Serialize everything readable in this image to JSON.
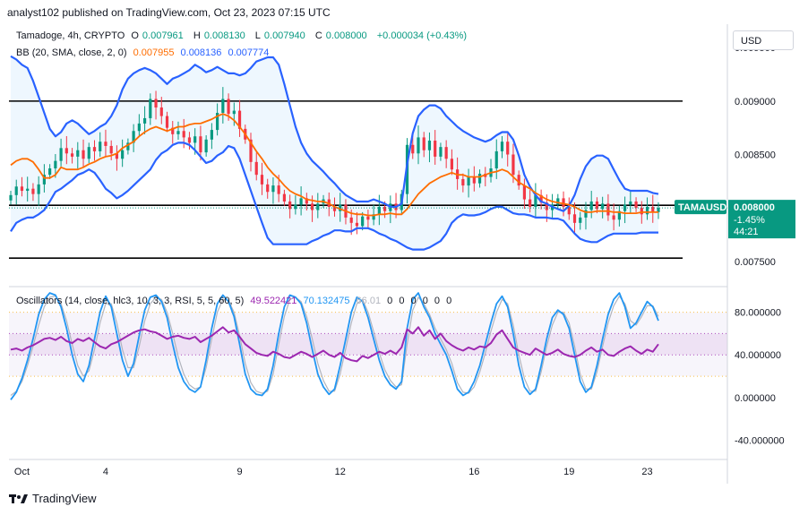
{
  "caption": "analyst102 published on TradingView.com, Oct 23, 2023 07:15 UTC",
  "legend_main": {
    "symbol": "Tamadoge, 4h, CRYPTO",
    "open_label": "O",
    "open": "0.007961",
    "high_label": "H",
    "high": "0.008130",
    "low_label": "L",
    "low": "0.007940",
    "close_label": "C",
    "close": "0.008000",
    "change": "+0.000034 (+0.43%)"
  },
  "legend_bb": {
    "label": "BB (20, SMA, close, 2, 0)",
    "basis": "0.007955",
    "upper": "0.008136",
    "lower": "0.007774"
  },
  "legend_osc": {
    "label": "Oscillators (14, close, hlc3, 10, 3, 3, RSI, 5, 5, 60, 5)",
    "v1": "49.522421",
    "v2": "70.132475",
    "v3": "66.01",
    "zeros": [
      "0",
      "0",
      "0",
      "0",
      "0",
      "0"
    ]
  },
  "currency_button": "USD",
  "price_tag": {
    "symbol": "TAMAUSD",
    "price": "0.008000",
    "pct": "-1.45%",
    "timer": "44:21"
  },
  "footer": "TradingView",
  "colors": {
    "up": "#089981",
    "down": "#f23645",
    "bb_band": "#2962ff",
    "bb_basis": "#ff6d00",
    "rsi": "#9c27b0",
    "stoch": "#2196f3"
  },
  "chart_data": [
    {
      "type": "candlestick",
      "title": "Tamadoge, 4h, CRYPTO",
      "y_ticks": [
        "0.009500",
        "0.009000",
        "0.008500",
        "0.008000",
        "0.007500"
      ],
      "x_ticks": [
        "Oct",
        "4",
        "9",
        "12",
        "16",
        "19",
        "23"
      ],
      "ylim": [
        0.00728,
        0.00972
      ],
      "horizontal_lines": [
        0.009,
        0.008025,
        0.00753
      ],
      "series": [
        {
          "name": "close",
          "values": [
            0.00812,
            0.0082,
            0.00816,
            0.00818,
            0.00813,
            0.00822,
            0.00831,
            0.00837,
            0.00844,
            0.00856,
            0.00851,
            0.00848,
            0.00854,
            0.00846,
            0.00857,
            0.00853,
            0.00862,
            0.00858,
            0.00851,
            0.00846,
            0.00854,
            0.00861,
            0.00872,
            0.00879,
            0.00884,
            0.00902,
            0.00894,
            0.00886,
            0.00875,
            0.00869,
            0.00872,
            0.00866,
            0.00861,
            0.00867,
            0.00852,
            0.00864,
            0.00873,
            0.00889,
            0.00902,
            0.00888,
            0.00891,
            0.00874,
            0.00864,
            0.00843,
            0.00831,
            0.00822,
            0.00815,
            0.00821,
            0.00813,
            0.00806,
            0.00799,
            0.00803,
            0.00809,
            0.00804,
            0.00798,
            0.00804,
            0.00808,
            0.00801,
            0.00797,
            0.00803,
            0.00791,
            0.00786,
            0.00783,
            0.00792,
            0.00789,
            0.00794,
            0.00801,
            0.00797,
            0.00804,
            0.00798,
            0.00813,
            0.00859,
            0.00851,
            0.00866,
            0.00854,
            0.00863,
            0.00848,
            0.00857,
            0.00846,
            0.00836,
            0.00827,
            0.00821,
            0.00829,
            0.00823,
            0.00832,
            0.00829,
            0.00837,
            0.00853,
            0.00862,
            0.0085,
            0.00831,
            0.00821,
            0.00808,
            0.00801,
            0.00812,
            0.00805,
            0.00798,
            0.00803,
            0.00809,
            0.00801,
            0.00794,
            0.00786,
            0.00791,
            0.00798,
            0.00806,
            0.00799,
            0.00804,
            0.00793,
            0.00789,
            0.00797,
            0.00803,
            0.00806,
            0.008,
            0.00794,
            0.00801,
            0.00796,
            0.008
          ]
        },
        {
          "name": "BB upper",
          "values": [
            0.00942,
            0.00939,
            0.00934,
            0.00931,
            0.00919,
            0.00904,
            0.00889,
            0.00874,
            0.00867,
            0.00871,
            0.00879,
            0.00882,
            0.00879,
            0.00874,
            0.00869,
            0.00872,
            0.00876,
            0.00879,
            0.00886,
            0.00896,
            0.00911,
            0.00921,
            0.00926,
            0.00929,
            0.00931,
            0.00929,
            0.00926,
            0.00921,
            0.00916,
            0.00921,
            0.00923,
            0.00926,
            0.00929,
            0.00934,
            0.00931,
            0.00927,
            0.00929,
            0.00932,
            0.00929,
            0.00926,
            0.00926,
            0.00924,
            0.00926,
            0.00931,
            0.00937,
            0.00939,
            0.00941,
            0.00941,
            0.00934,
            0.00916,
            0.00896,
            0.00876,
            0.00861,
            0.00851,
            0.00844,
            0.00839,
            0.00834,
            0.00828,
            0.00823,
            0.00817,
            0.00812,
            0.00809,
            0.00806,
            0.00806,
            0.00806,
            0.00808,
            0.00806,
            0.00804,
            0.00801,
            0.00801,
            0.00804,
            0.00841,
            0.0087,
            0.00886,
            0.00892,
            0.00896,
            0.00896,
            0.00893,
            0.00886,
            0.00881,
            0.00876,
            0.00872,
            0.00869,
            0.00866,
            0.00864,
            0.00862,
            0.00864,
            0.00868,
            0.00871,
            0.00871,
            0.00864,
            0.00849,
            0.00831,
            0.0082,
            0.00812,
            0.00806,
            0.00804,
            0.00801,
            0.00799,
            0.00797,
            0.00802,
            0.00812,
            0.00827,
            0.00839,
            0.00846,
            0.00849,
            0.00849,
            0.00846,
            0.00836,
            0.00826,
            0.00818,
            0.00816,
            0.00816,
            0.00816,
            0.00816,
            0.00814,
            0.00813
          ]
        },
        {
          "name": "BB basis",
          "values": [
            0.0084,
            0.00844,
            0.00846,
            0.00846,
            0.00843,
            0.00836,
            0.00828,
            0.00828,
            0.00831,
            0.00838,
            0.00836,
            0.00836,
            0.00836,
            0.00838,
            0.00841,
            0.00843,
            0.00846,
            0.00848,
            0.00849,
            0.00851,
            0.00856,
            0.00859,
            0.00862,
            0.00867,
            0.00871,
            0.00874,
            0.00876,
            0.00874,
            0.00872,
            0.00874,
            0.00876,
            0.00876,
            0.00878,
            0.00879,
            0.00879,
            0.00881,
            0.00883,
            0.00886,
            0.00888,
            0.00886,
            0.00882,
            0.00876,
            0.00869,
            0.00861,
            0.00853,
            0.00846,
            0.00838,
            0.00832,
            0.00827,
            0.00821,
            0.00816,
            0.00813,
            0.00811,
            0.00808,
            0.00807,
            0.00806,
            0.00806,
            0.00804,
            0.00801,
            0.00799,
            0.00797,
            0.00795,
            0.00794,
            0.00794,
            0.00793,
            0.00793,
            0.00794,
            0.00794,
            0.00795,
            0.00794,
            0.00794,
            0.00799,
            0.00806,
            0.00813,
            0.00818,
            0.00823,
            0.00826,
            0.00829,
            0.00831,
            0.00833,
            0.00831,
            0.00831,
            0.00829,
            0.00829,
            0.00829,
            0.00831,
            0.00833,
            0.00834,
            0.00836,
            0.00834,
            0.00829,
            0.00824,
            0.00821,
            0.00818,
            0.00814,
            0.00811,
            0.00808,
            0.00806,
            0.00805,
            0.00804,
            0.00803,
            0.00801,
            0.00798,
            0.00796,
            0.00796,
            0.00797,
            0.00797,
            0.00797,
            0.00796,
            0.00796,
            0.00795,
            0.00795,
            0.00795,
            0.00796,
            0.00796,
            0.00796,
            0.00796
          ]
        },
        {
          "name": "BB lower",
          "values": [
            0.00778,
            0.00786,
            0.00789,
            0.00791,
            0.00791,
            0.00794,
            0.00798,
            0.00806,
            0.00815,
            0.00818,
            0.00822,
            0.00826,
            0.00831,
            0.00833,
            0.00836,
            0.00833,
            0.00826,
            0.00818,
            0.00814,
            0.00809,
            0.00812,
            0.00816,
            0.00821,
            0.00826,
            0.00831,
            0.00836,
            0.00845,
            0.00851,
            0.00854,
            0.00859,
            0.00861,
            0.00861,
            0.00859,
            0.00854,
            0.00848,
            0.00842,
            0.00844,
            0.00849,
            0.00852,
            0.00858,
            0.00856,
            0.00846,
            0.00831,
            0.00816,
            0.00801,
            0.00786,
            0.00772,
            0.00766,
            0.00766,
            0.00766,
            0.00766,
            0.00766,
            0.00766,
            0.00766,
            0.00769,
            0.00771,
            0.00774,
            0.00776,
            0.00779,
            0.00779,
            0.00778,
            0.00778,
            0.00781,
            0.00781,
            0.00781,
            0.00779,
            0.00776,
            0.00774,
            0.00771,
            0.00769,
            0.00766,
            0.00763,
            0.00761,
            0.00761,
            0.00761,
            0.00763,
            0.00766,
            0.00769,
            0.00776,
            0.00786,
            0.00791,
            0.00794,
            0.00793,
            0.00793,
            0.00794,
            0.00796,
            0.00799,
            0.00801,
            0.00801,
            0.00798,
            0.00795,
            0.00794,
            0.00794,
            0.00793,
            0.00791,
            0.00791,
            0.00791,
            0.0079,
            0.0079,
            0.00788,
            0.00782,
            0.00776,
            0.00771,
            0.00769,
            0.00768,
            0.00768,
            0.00771,
            0.00774,
            0.00776,
            0.00776,
            0.00776,
            0.00776,
            0.00776,
            0.00777,
            0.00777,
            0.00777,
            0.00777
          ]
        }
      ]
    },
    {
      "type": "line",
      "title": "Oscillators (14, close, hlc3, 10, 3, 3, RSI, 5, 5, 60, 5)",
      "y_ticks": [
        "80.000000",
        "40.000000",
        "0.000000",
        "-40.000000"
      ],
      "ylim": [
        -58,
        104
      ],
      "bands": [
        80,
        60,
        40,
        20
      ],
      "series": [
        {
          "name": "RSI",
          "values": [
            45,
            46,
            44,
            47,
            49,
            52,
            55,
            56,
            54,
            57,
            53,
            51,
            55,
            53,
            56,
            52,
            48,
            46,
            50,
            52,
            55,
            58,
            61,
            63,
            64,
            62,
            61,
            58,
            55,
            57,
            58,
            56,
            55,
            57,
            52,
            55,
            58,
            62,
            66,
            61,
            63,
            57,
            50,
            46,
            42,
            40,
            39,
            43,
            41,
            38,
            37,
            40,
            43,
            41,
            38,
            41,
            44,
            40,
            38,
            42,
            37,
            35,
            34,
            39,
            37,
            40,
            43,
            41,
            44,
            41,
            47,
            64,
            60,
            66,
            58,
            63,
            55,
            60,
            53,
            49,
            46,
            44,
            47,
            45,
            48,
            47,
            51,
            59,
            63,
            55,
            47,
            44,
            42,
            40,
            46,
            43,
            40,
            42,
            45,
            41,
            39,
            38,
            40,
            44,
            47,
            43,
            45,
            40,
            39,
            43,
            46,
            48,
            44,
            41,
            45,
            43,
            50
          ]
        },
        {
          "name": "Stoch K",
          "values": [
            -2,
            5,
            18,
            35,
            55,
            78,
            92,
            98,
            96,
            85,
            65,
            40,
            22,
            15,
            30,
            55,
            80,
            95,
            85,
            60,
            35,
            20,
            32,
            58,
            82,
            94,
            96,
            90,
            75,
            50,
            28,
            15,
            8,
            5,
            10,
            35,
            65,
            88,
            96,
            90,
            76,
            50,
            22,
            8,
            3,
            2,
            8,
            30,
            60,
            85,
            96,
            94,
            88,
            70,
            45,
            22,
            10,
            3,
            8,
            30,
            55,
            80,
            94,
            90,
            75,
            55,
            35,
            20,
            12,
            8,
            15,
            65,
            92,
            98,
            85,
            75,
            60,
            50,
            40,
            25,
            8,
            2,
            5,
            15,
            30,
            50,
            70,
            88,
            95,
            85,
            60,
            30,
            10,
            3,
            8,
            30,
            55,
            75,
            82,
            78,
            65,
            40,
            15,
            5,
            10,
            30,
            55,
            78,
            92,
            98,
            85,
            65,
            70,
            80,
            90,
            85,
            72
          ]
        },
        {
          "name": "Stoch D",
          "values": [
            2,
            6,
            15,
            30,
            48,
            68,
            85,
            94,
            95,
            88,
            72,
            50,
            30,
            20,
            25,
            45,
            70,
            88,
            88,
            70,
            45,
            28,
            28,
            48,
            72,
            88,
            94,
            92,
            80,
            60,
            38,
            22,
            12,
            8,
            10,
            28,
            55,
            80,
            92,
            91,
            80,
            58,
            32,
            14,
            6,
            4,
            6,
            22,
            50,
            76,
            92,
            94,
            90,
            76,
            55,
            32,
            16,
            6,
            6,
            22,
            46,
            70,
            88,
            92,
            80,
            62,
            42,
            26,
            16,
            10,
            12,
            50,
            82,
            94,
            88,
            78,
            65,
            55,
            45,
            32,
            14,
            5,
            4,
            10,
            24,
            42,
            62,
            80,
            92,
            88,
            68,
            40,
            18,
            6,
            6,
            24,
            48,
            68,
            80,
            80,
            70,
            48,
            22,
            8,
            8,
            24,
            48,
            70,
            86,
            95,
            88,
            72,
            68,
            76,
            86,
            86,
            76
          ]
        }
      ]
    }
  ]
}
